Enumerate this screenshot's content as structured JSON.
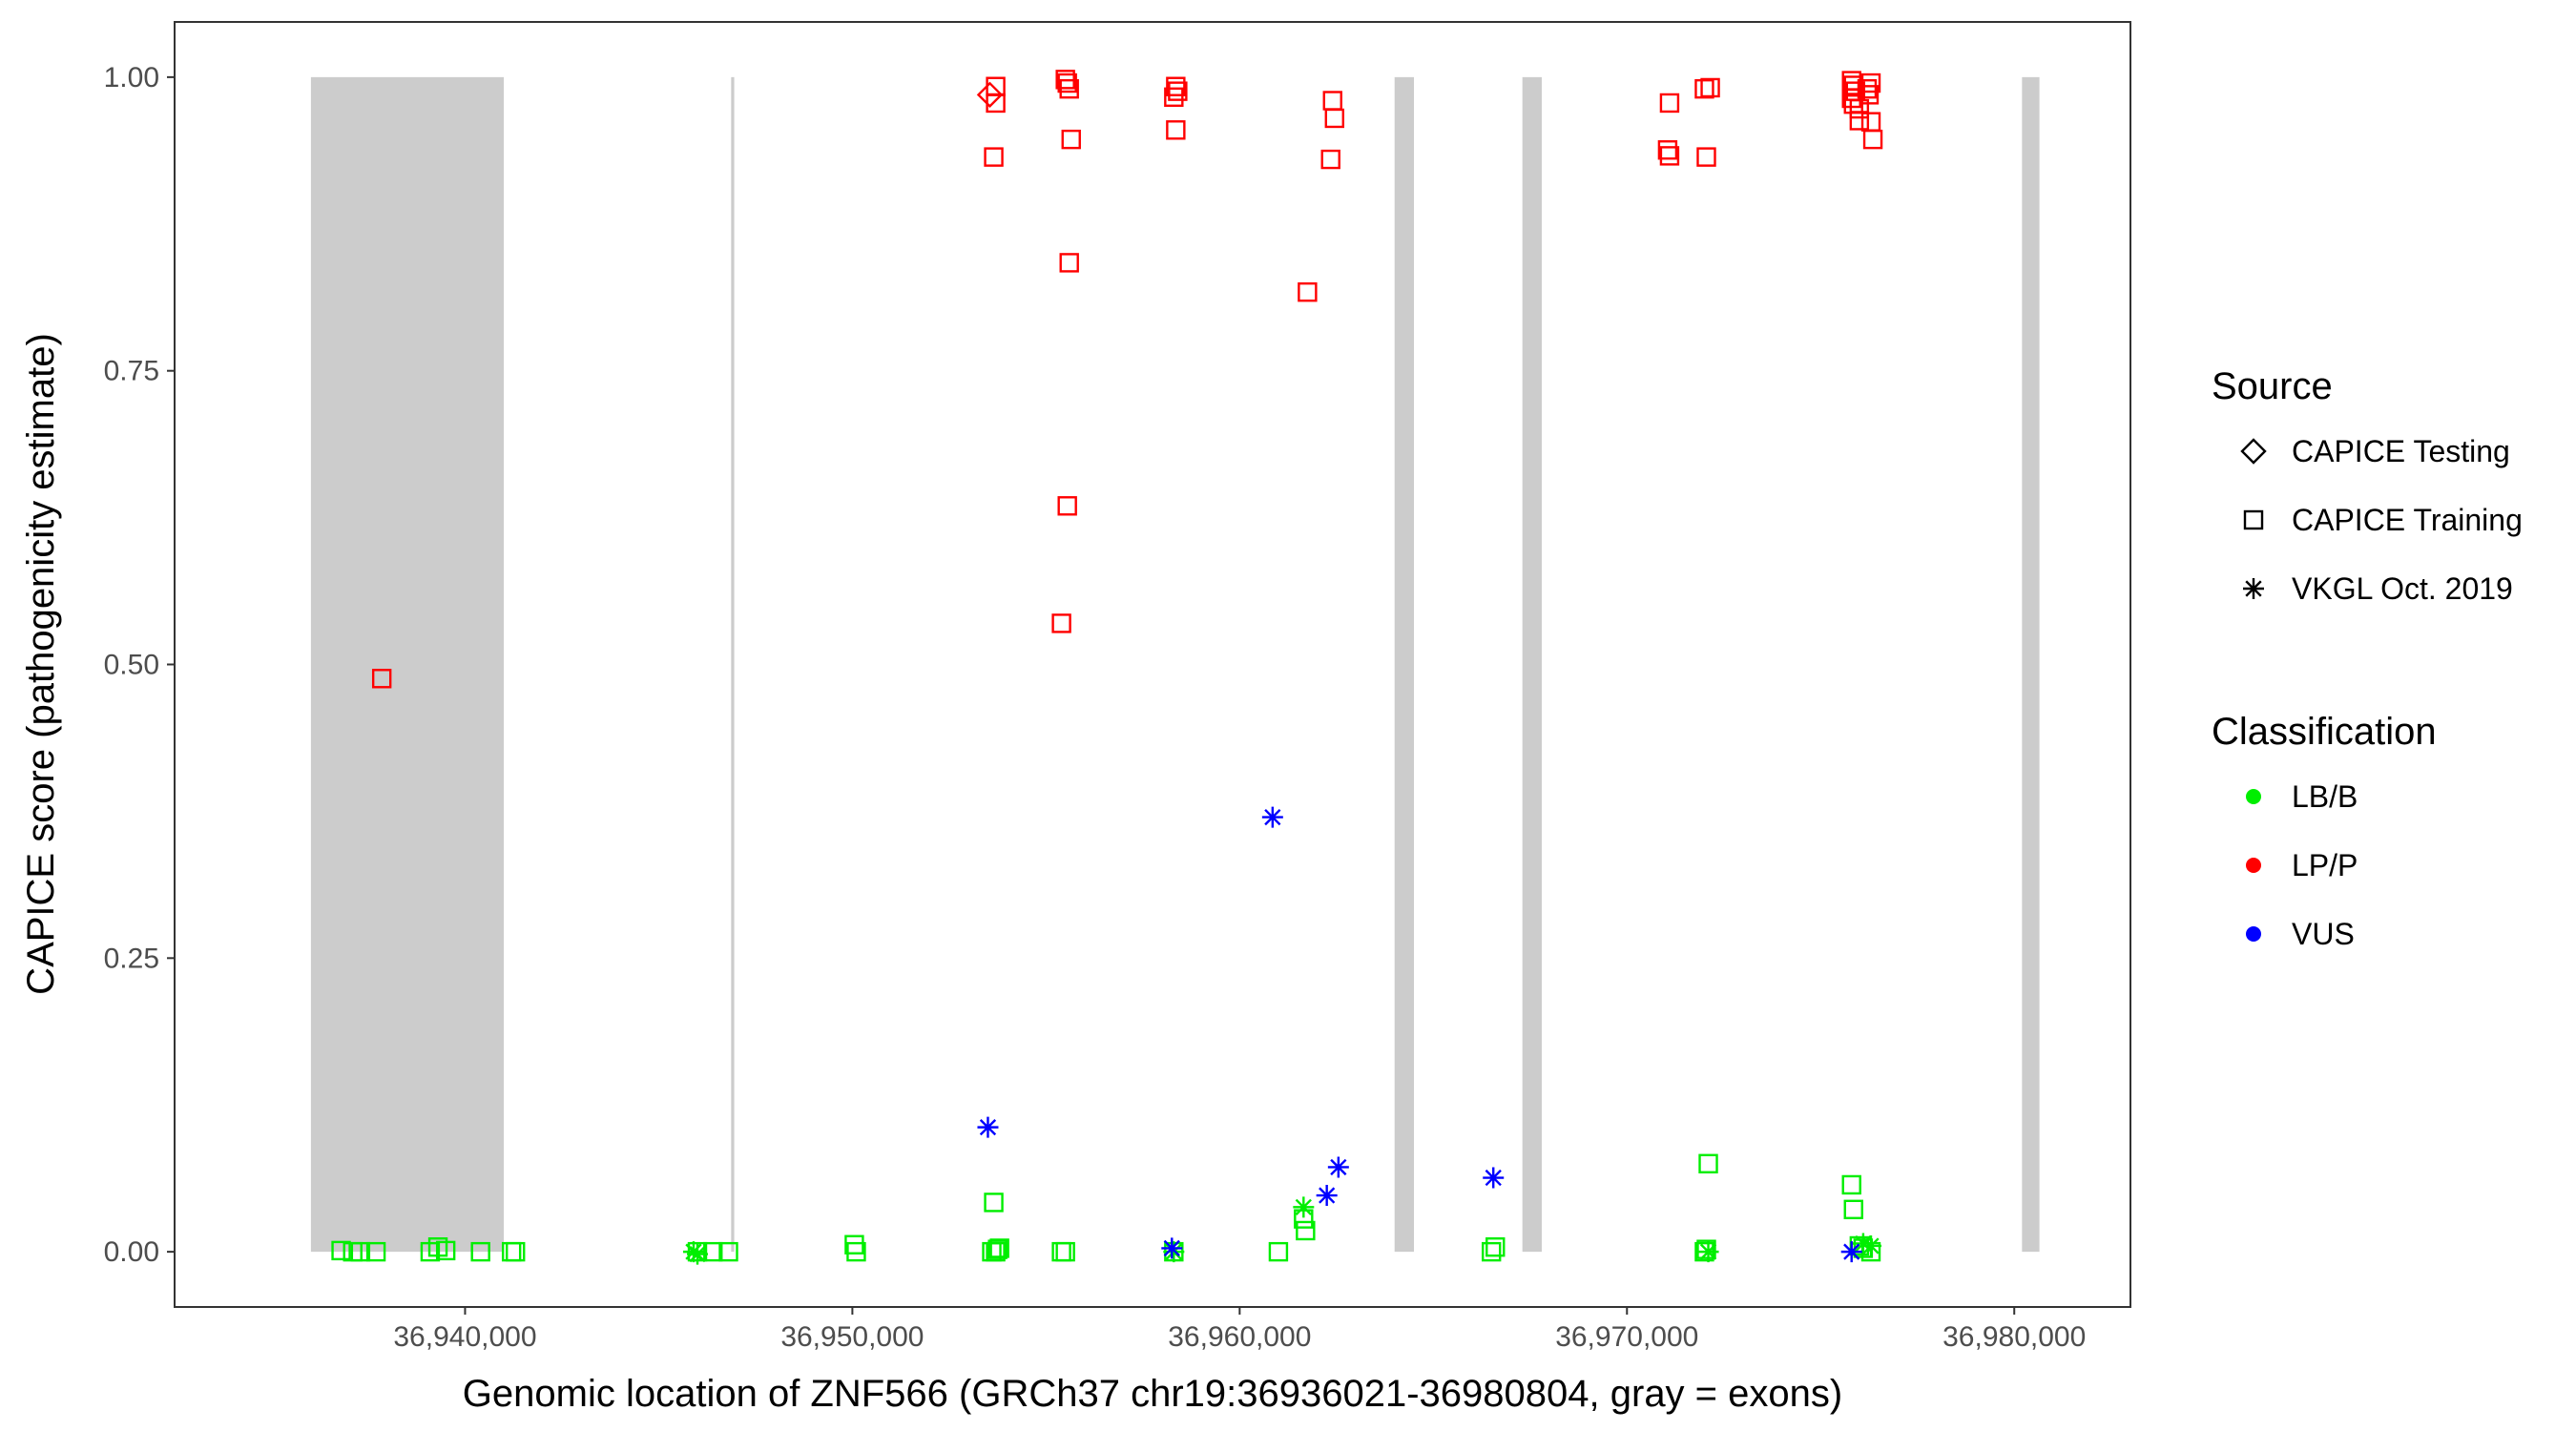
{
  "chart_data": {
    "type": "scatter",
    "xlabel": "Genomic location of ZNF566 (GRCh37 chr19:36936021-36980804, gray = exons)",
    "ylabel": "CAPICE score (pathogenicity estimate)",
    "xlim": [
      36932500,
      36983000
    ],
    "ylim": [
      -0.047,
      1.047
    ],
    "x_ticks": [
      36940000,
      36950000,
      36960000,
      36970000,
      36980000
    ],
    "x_tick_labels": [
      "36,940,000",
      "36,950,000",
      "36,960,000",
      "36,970,000",
      "36,980,000"
    ],
    "y_ticks": [
      0,
      0.25,
      0.5,
      0.75,
      1.0
    ],
    "y_tick_labels": [
      "0.00",
      "0.25",
      "0.50",
      "0.75",
      "1.00"
    ],
    "grid": false,
    "exon_color": "#cccccc",
    "exons": [
      {
        "start": 36936020,
        "end": 36941000
      },
      {
        "start": 36946870,
        "end": 36946950
      },
      {
        "start": 36964000,
        "end": 36964500
      },
      {
        "start": 36967300,
        "end": 36967800
      },
      {
        "start": 36980200,
        "end": 36980650
      }
    ],
    "legend": {
      "placement": "right",
      "source_title": "Source",
      "source_entries": [
        {
          "label": "CAPICE Testing",
          "shape": "diamond"
        },
        {
          "label": "CAPICE Training",
          "shape": "square"
        },
        {
          "label": "VKGL Oct. 2019",
          "shape": "asterisk"
        }
      ],
      "class_title": "Classification",
      "class_entries": [
        {
          "label": "LB/B",
          "color": "#00ee00"
        },
        {
          "label": "LP/P",
          "color": "#ff0000"
        },
        {
          "label": "VUS",
          "color": "#0000ff"
        }
      ]
    },
    "series": [
      {
        "source": "CAPICE Training",
        "classification": "LP/P",
        "shape": "square",
        "color": "#ff0000",
        "points": [
          [
            36937850,
            0.488
          ],
          [
            36953700,
            0.992
          ],
          [
            36953700,
            0.978
          ],
          [
            36953650,
            0.932
          ],
          [
            36955500,
            0.998
          ],
          [
            36955550,
            0.995
          ],
          [
            36955600,
            0.99
          ],
          [
            36955650,
            0.947
          ],
          [
            36955600,
            0.842
          ],
          [
            36955550,
            0.635
          ],
          [
            36955400,
            0.535
          ],
          [
            36958350,
            0.992
          ],
          [
            36958400,
            0.988
          ],
          [
            36958300,
            0.983
          ],
          [
            36958350,
            0.955
          ],
          [
            36961750,
            0.817
          ],
          [
            36962400,
            0.98
          ],
          [
            36962450,
            0.965
          ],
          [
            36962350,
            0.93
          ],
          [
            36971100,
            0.978
          ],
          [
            36971050,
            0.938
          ],
          [
            36971100,
            0.933
          ],
          [
            36972000,
            0.99
          ],
          [
            36972150,
            0.991
          ],
          [
            36972050,
            0.932
          ],
          [
            36975800,
            0.997
          ],
          [
            36975850,
            0.993
          ],
          [
            36975900,
            0.988
          ],
          [
            36975800,
            0.982
          ],
          [
            36975850,
            0.977
          ],
          [
            36976000,
            0.973
          ],
          [
            36976200,
            0.99
          ],
          [
            36976300,
            0.995
          ],
          [
            36976250,
            0.985
          ],
          [
            36976000,
            0.963
          ],
          [
            36976300,
            0.962
          ],
          [
            36976350,
            0.947
          ]
        ]
      },
      {
        "source": "CAPICE Testing",
        "classification": "LP/P",
        "shape": "diamond",
        "color": "#ff0000",
        "points": [
          [
            36953550,
            0.985
          ]
        ]
      },
      {
        "source": "CAPICE Training",
        "classification": "LB/B",
        "shape": "square",
        "color": "#00ee00",
        "points": [
          [
            36936800,
            0.001
          ],
          [
            36937100,
            0.0
          ],
          [
            36937300,
            0.0
          ],
          [
            36937700,
            0.0
          ],
          [
            36939100,
            0.0
          ],
          [
            36939300,
            0.004
          ],
          [
            36939500,
            0.001
          ],
          [
            36940400,
            0.0
          ],
          [
            36941200,
            0.0
          ],
          [
            36941300,
            0.0
          ],
          [
            36946000,
            0.0
          ],
          [
            36946400,
            0.0
          ],
          [
            36946800,
            0.0
          ],
          [
            36950050,
            0.006
          ],
          [
            36950100,
            0.0
          ],
          [
            36953650,
            0.042
          ],
          [
            36953600,
            0.0
          ],
          [
            36953700,
            0.0
          ],
          [
            36953750,
            0.002
          ],
          [
            36953800,
            0.003
          ],
          [
            36955400,
            0.0
          ],
          [
            36955500,
            0.0
          ],
          [
            36958300,
            0.0
          ],
          [
            36961000,
            0.0
          ],
          [
            36961650,
            0.028
          ],
          [
            36961700,
            0.018
          ],
          [
            36966500,
            0.0
          ],
          [
            36966600,
            0.004
          ],
          [
            36972100,
            0.075
          ],
          [
            36972000,
            0.0
          ],
          [
            36972050,
            0.002
          ],
          [
            36975800,
            0.057
          ],
          [
            36975850,
            0.036
          ],
          [
            36976000,
            0.005
          ],
          [
            36976100,
            0.003
          ],
          [
            36976300,
            0.0
          ]
        ]
      },
      {
        "source": "VKGL Oct. 2019",
        "classification": "LB/B",
        "shape": "asterisk",
        "color": "#00ee00",
        "points": [
          [
            36945900,
            0.0
          ],
          [
            36946000,
            -0.002
          ],
          [
            36958300,
            0.0
          ],
          [
            36961650,
            0.038
          ],
          [
            36972100,
            0.0
          ],
          [
            36976100,
            0.007
          ],
          [
            36976300,
            0.005
          ]
        ]
      },
      {
        "source": "VKGL Oct. 2019",
        "classification": "VUS",
        "shape": "asterisk",
        "color": "#0000ff",
        "points": [
          [
            36953500,
            0.106
          ],
          [
            36958250,
            0.003
          ],
          [
            36960850,
            0.37
          ],
          [
            36962250,
            0.048
          ],
          [
            36962550,
            0.072
          ],
          [
            36966550,
            0.063
          ],
          [
            36975800,
            0.0
          ]
        ]
      }
    ]
  }
}
